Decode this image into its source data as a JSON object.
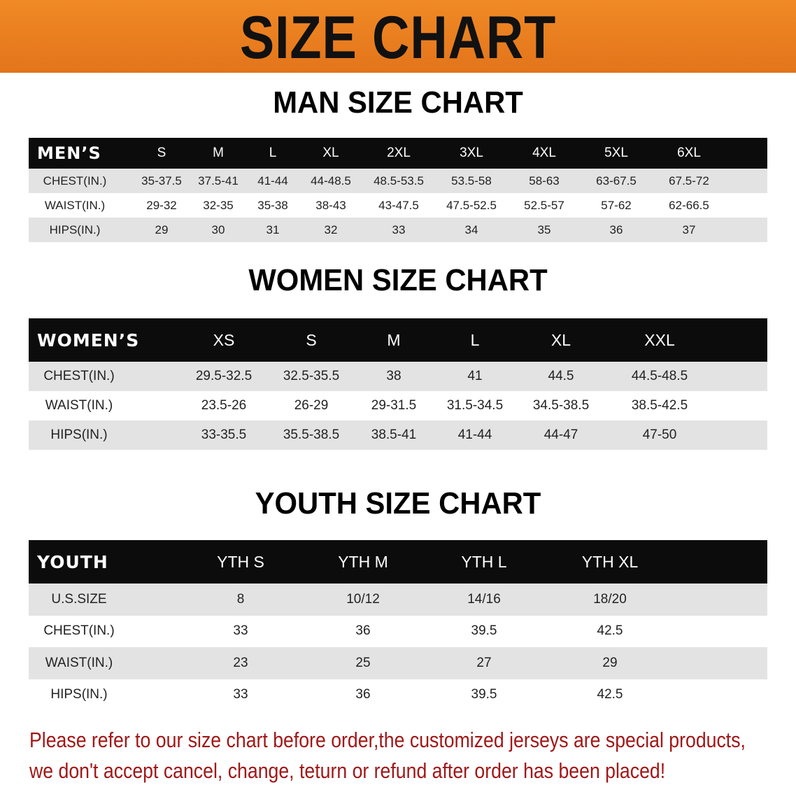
{
  "banner": {
    "title": "SIZE CHART",
    "color": "#e87b1c"
  },
  "men": {
    "title": "MAN SIZE CHART",
    "header": "MEN’S",
    "sizes": [
      "S",
      "M",
      "L",
      "XL",
      "2XL",
      "3XL",
      "4XL",
      "5XL",
      "6XL"
    ],
    "rows": [
      {
        "label": "CHEST(IN.)",
        "values": [
          "35-37.5",
          "37.5-41",
          "41-44",
          "44-48.5",
          "48.5-53.5",
          "53.5-58",
          "58-63",
          "63-67.5",
          "67.5-72"
        ]
      },
      {
        "label": "WAIST(IN.)",
        "values": [
          "29-32",
          "32-35",
          "35-38",
          "38-43",
          "43-47.5",
          "47.5-52.5",
          "52.5-57",
          "57-62",
          "62-66.5"
        ]
      },
      {
        "label": "HIPS(IN.)",
        "values": [
          "29",
          "30",
          "31",
          "32",
          "33",
          "34",
          "35",
          "36",
          "37"
        ]
      }
    ]
  },
  "women": {
    "title": "WOMEN SIZE CHART",
    "header": "WOMEN’S",
    "sizes": [
      "XS",
      "S",
      "M",
      "L",
      "XL",
      "XXL"
    ],
    "rows": [
      {
        "label": "CHEST(IN.)",
        "values": [
          "29.5-32.5",
          "32.5-35.5",
          "38",
          "41",
          "44.5",
          "44.5-48.5"
        ]
      },
      {
        "label": "WAIST(IN.)",
        "values": [
          "23.5-26",
          "26-29",
          "29-31.5",
          "31.5-34.5",
          "34.5-38.5",
          "38.5-42.5"
        ]
      },
      {
        "label": "HIPS(IN.)",
        "values": [
          "33-35.5",
          "35.5-38.5",
          "38.5-41",
          "41-44",
          "44-47",
          "47-50"
        ]
      }
    ]
  },
  "youth": {
    "title": "YOUTH SIZE CHART",
    "header": "YOUTH",
    "sizes": [
      "YTH S",
      "YTH M",
      "YTH L",
      "YTH XL"
    ],
    "rows": [
      {
        "label": "U.S.SIZE",
        "values": [
          "8",
          "10/12",
          "14/16",
          "18/20"
        ]
      },
      {
        "label": "CHEST(IN.)",
        "values": [
          "33",
          "36",
          "39.5",
          "42.5"
        ]
      },
      {
        "label": "WAIST(IN.)",
        "values": [
          "23",
          "25",
          "27",
          "29"
        ]
      },
      {
        "label": "HIPS(IN.)",
        "values": [
          "33",
          "36",
          "39.5",
          "42.5"
        ]
      }
    ]
  },
  "notice": {
    "line1": "Please refer to our size chart before order,the customized jerseys are special products,",
    "line2": "we don't accept cancel, change, teturn or refund after order has been placed!",
    "color": "#a01818"
  }
}
